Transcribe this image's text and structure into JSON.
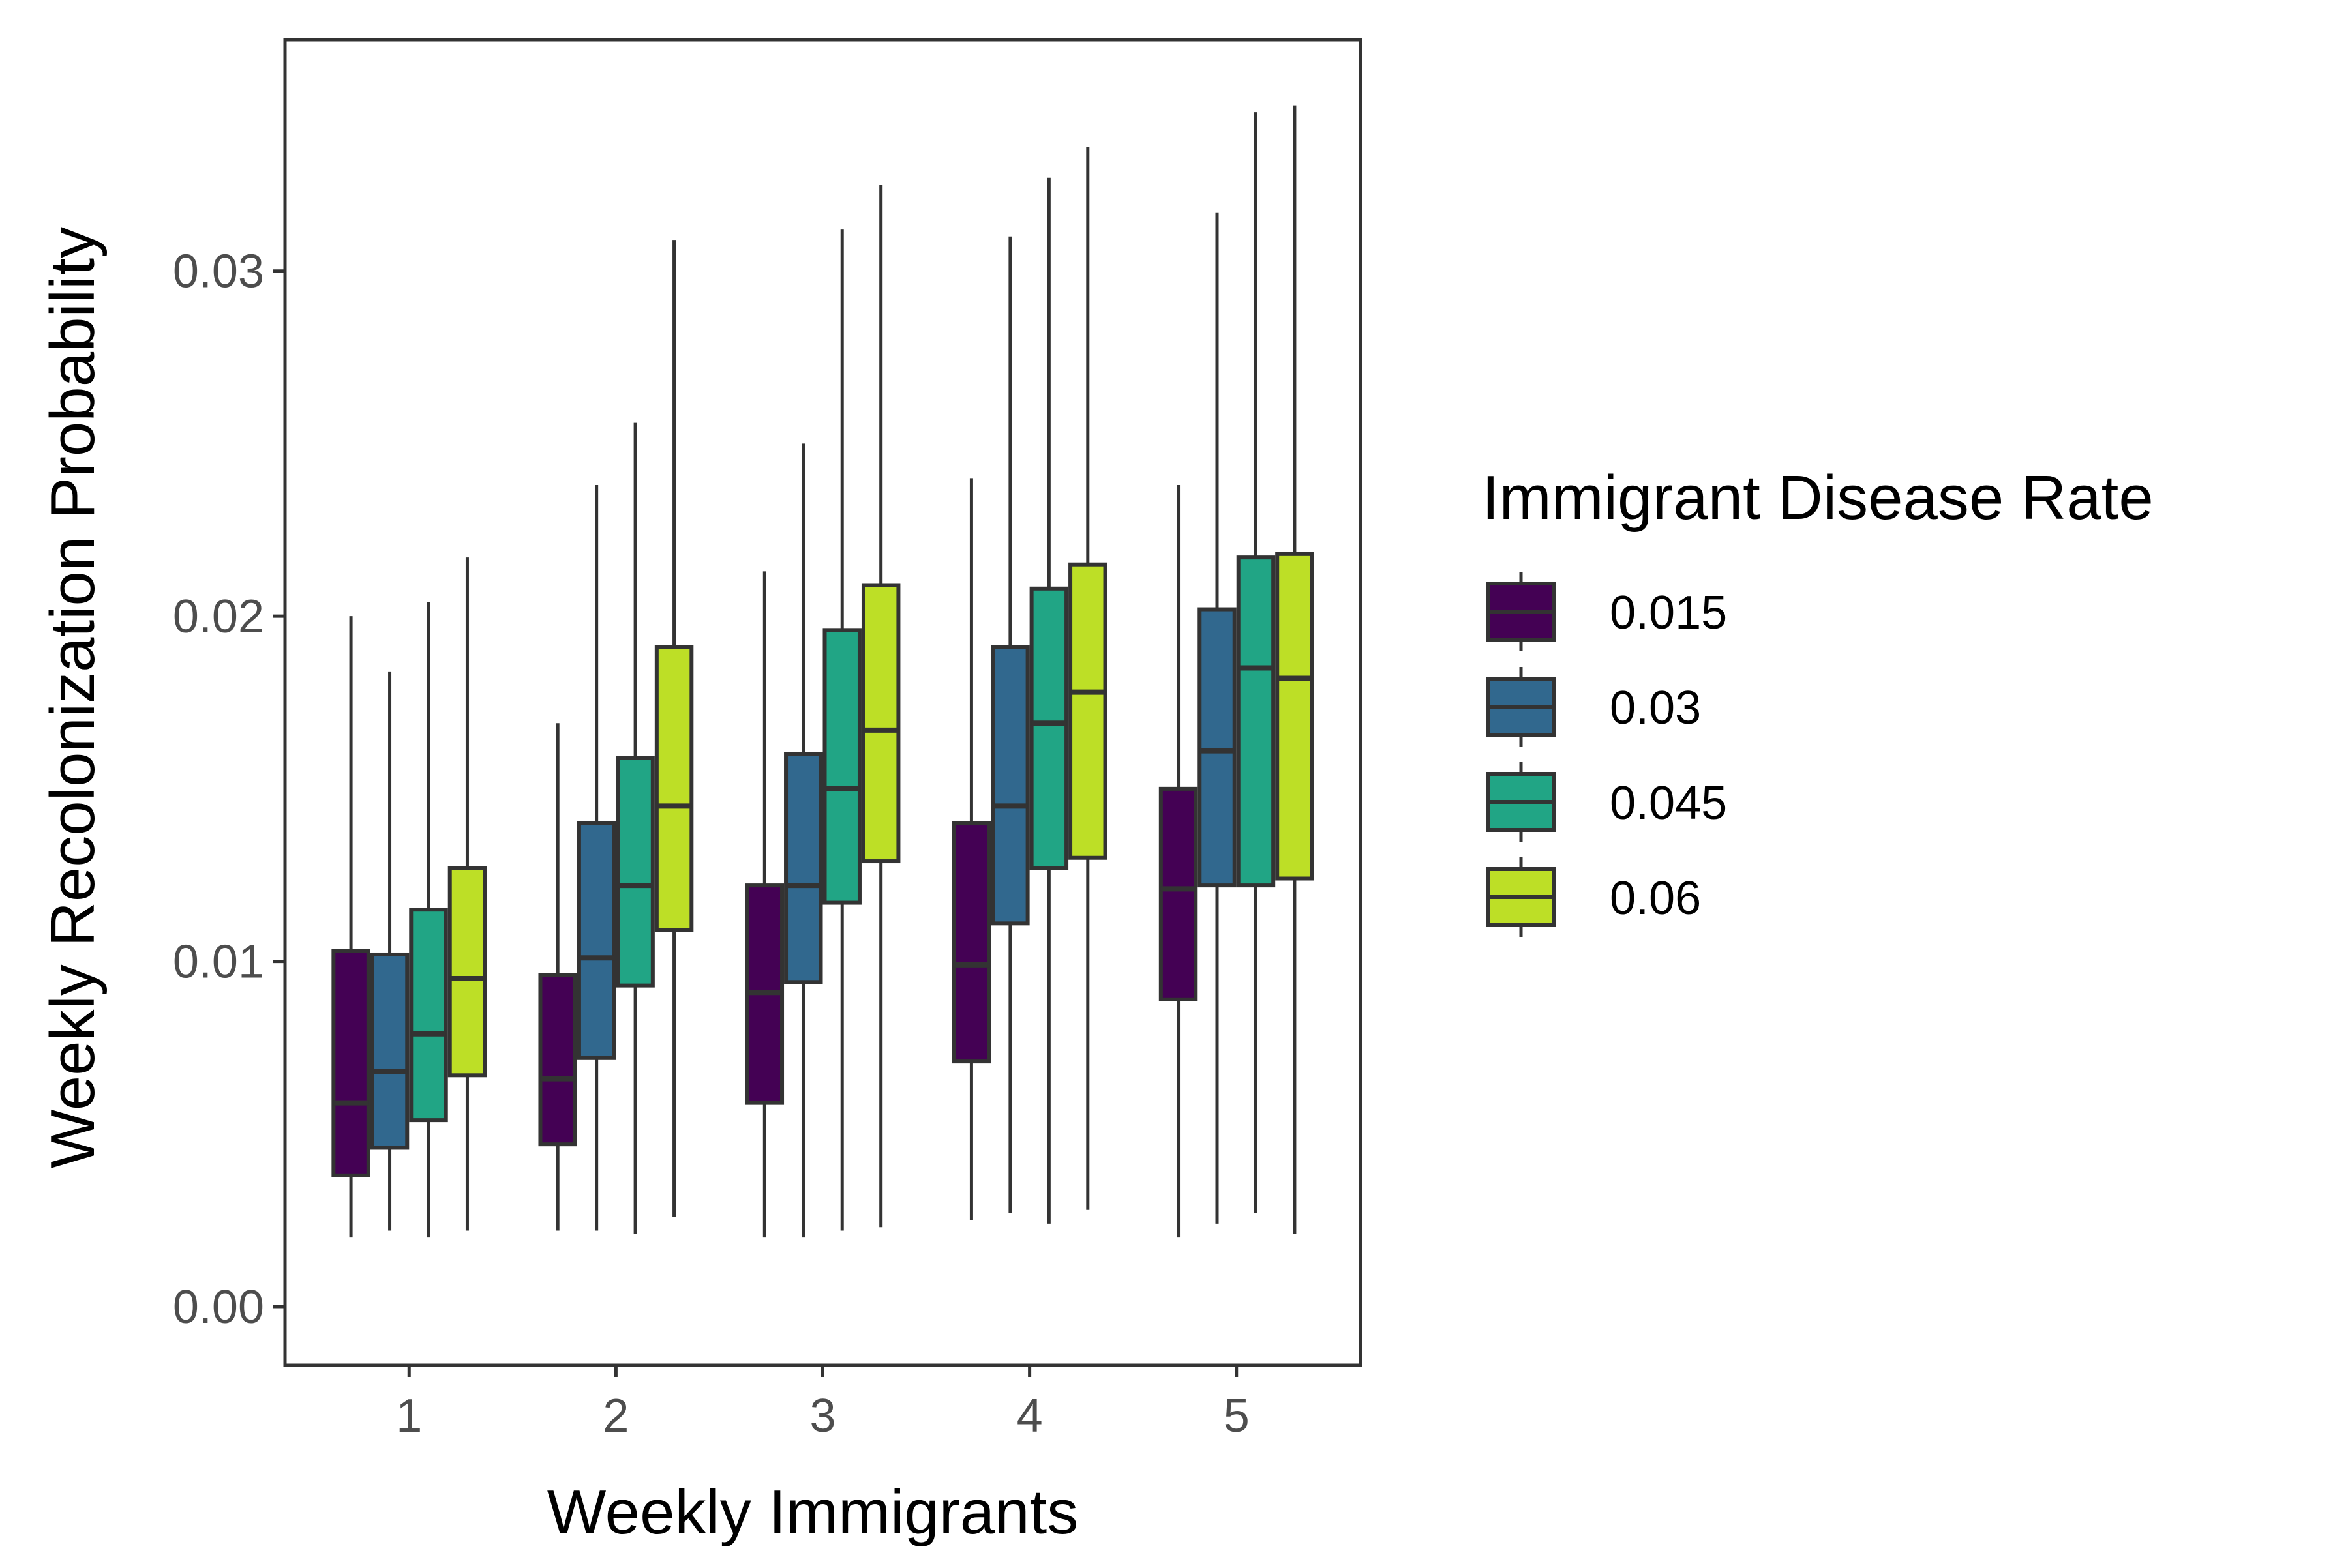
{
  "chart_data": {
    "type": "boxplot",
    "title": "",
    "xlabel": "Weekly Immigrants",
    "ylabel": "Weekly Recolonization Probability",
    "categories": [
      "1",
      "2",
      "3",
      "4",
      "5"
    ],
    "ylim": [
      -0.0017,
      0.0367
    ],
    "yticks": [
      0.0,
      0.01,
      0.02,
      0.03
    ],
    "ytick_labels": [
      "0.00",
      "0.01",
      "0.02",
      "0.03"
    ],
    "grid": false,
    "legend": {
      "title": "Immigrant Disease Rate",
      "position": "right"
    },
    "series": [
      {
        "name": "0.015",
        "color": "#440154",
        "boxes": [
          {
            "whisker_low": 0.002,
            "q1": 0.0038,
            "median": 0.0059,
            "q3": 0.0103,
            "whisker_high": 0.02
          },
          {
            "whisker_low": 0.0022,
            "q1": 0.0047,
            "median": 0.0066,
            "q3": 0.0096,
            "whisker_high": 0.0169
          },
          {
            "whisker_low": 0.002,
            "q1": 0.0059,
            "median": 0.0091,
            "q3": 0.0122,
            "whisker_high": 0.0213
          },
          {
            "whisker_low": 0.0025,
            "q1": 0.0071,
            "median": 0.0099,
            "q3": 0.014,
            "whisker_high": 0.024
          },
          {
            "whisker_low": 0.002,
            "q1": 0.0089,
            "median": 0.0121,
            "q3": 0.015,
            "whisker_high": 0.0238
          }
        ]
      },
      {
        "name": "0.03",
        "color": "#31688e",
        "boxes": [
          {
            "whisker_low": 0.0022,
            "q1": 0.0046,
            "median": 0.0068,
            "q3": 0.0102,
            "whisker_high": 0.0184
          },
          {
            "whisker_low": 0.0022,
            "q1": 0.0072,
            "median": 0.0101,
            "q3": 0.014,
            "whisker_high": 0.0238
          },
          {
            "whisker_low": 0.002,
            "q1": 0.0094,
            "median": 0.0122,
            "q3": 0.016,
            "whisker_high": 0.025
          },
          {
            "whisker_low": 0.0027,
            "q1": 0.0111,
            "median": 0.0145,
            "q3": 0.0191,
            "whisker_high": 0.031
          },
          {
            "whisker_low": 0.0024,
            "q1": 0.0122,
            "median": 0.0161,
            "q3": 0.0202,
            "whisker_high": 0.0317
          }
        ]
      },
      {
        "name": "0.045",
        "color": "#21a585",
        "boxes": [
          {
            "whisker_low": 0.002,
            "q1": 0.0054,
            "median": 0.0079,
            "q3": 0.0115,
            "whisker_high": 0.0204
          },
          {
            "whisker_low": 0.0021,
            "q1": 0.0093,
            "median": 0.0122,
            "q3": 0.0159,
            "whisker_high": 0.0256
          },
          {
            "whisker_low": 0.0022,
            "q1": 0.0117,
            "median": 0.015,
            "q3": 0.0196,
            "whisker_high": 0.0312
          },
          {
            "whisker_low": 0.0024,
            "q1": 0.0127,
            "median": 0.0169,
            "q3": 0.0208,
            "whisker_high": 0.0327
          },
          {
            "whisker_low": 0.0027,
            "q1": 0.0122,
            "median": 0.0185,
            "q3": 0.0217,
            "whisker_high": 0.0346
          }
        ]
      },
      {
        "name": "0.06",
        "color": "#bddf26",
        "boxes": [
          {
            "whisker_low": 0.0022,
            "q1": 0.0067,
            "median": 0.0095,
            "q3": 0.0127,
            "whisker_high": 0.0217
          },
          {
            "whisker_low": 0.0026,
            "q1": 0.0109,
            "median": 0.0145,
            "q3": 0.0191,
            "whisker_high": 0.0309
          },
          {
            "whisker_low": 0.0023,
            "q1": 0.0129,
            "median": 0.0167,
            "q3": 0.0209,
            "whisker_high": 0.0325
          },
          {
            "whisker_low": 0.0028,
            "q1": 0.013,
            "median": 0.0178,
            "q3": 0.0215,
            "whisker_high": 0.0336
          },
          {
            "whisker_low": 0.0021,
            "q1": 0.0124,
            "median": 0.0182,
            "q3": 0.0218,
            "whisker_high": 0.0348
          }
        ]
      }
    ],
    "outline_color": "#333333"
  }
}
